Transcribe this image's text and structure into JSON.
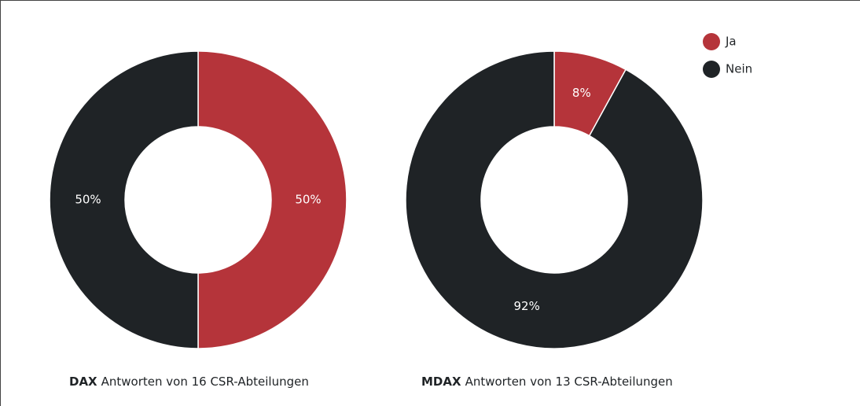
{
  "chart_data": [
    {
      "type": "pie",
      "categories": [
        "Ja",
        "Nein"
      ],
      "values": [
        50,
        50
      ],
      "value_labels": [
        "50%",
        "50%"
      ],
      "colors": [
        "#b5343a",
        "#1f2326"
      ],
      "caption_bold": "DAX",
      "caption": "Antworten von 16 CSR-Abteilungen"
    },
    {
      "type": "pie",
      "categories": [
        "Ja",
        "Nein"
      ],
      "values": [
        8,
        92
      ],
      "value_labels": [
        "8%",
        "92%"
      ],
      "colors": [
        "#b5343a",
        "#1f2326"
      ],
      "caption_bold": "MDAX",
      "caption": "Antworten von 13 CSR-Abteilungen"
    }
  ]
}
